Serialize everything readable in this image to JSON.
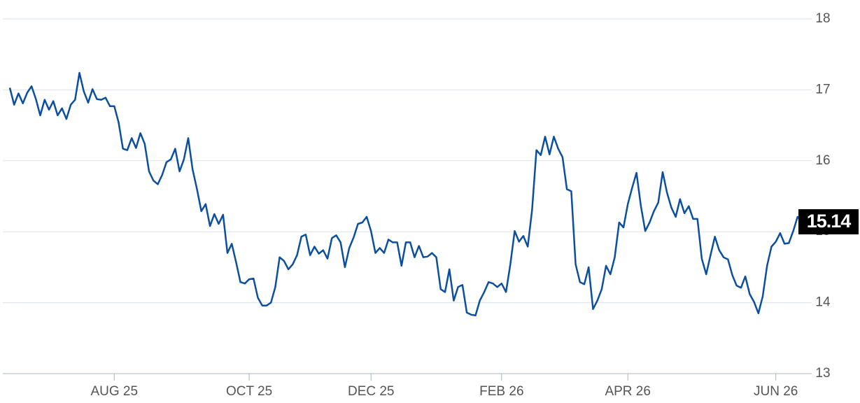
{
  "chart_data": {
    "type": "line",
    "categories": [
      null,
      null,
      null,
      null,
      null,
      null,
      null,
      null,
      null,
      null,
      null,
      null,
      null,
      null,
      null,
      null,
      null,
      null,
      null,
      null,
      null,
      null,
      null,
      null,
      "AUG 25",
      null,
      null,
      null,
      null,
      null,
      null,
      null,
      null,
      null,
      null,
      null,
      null,
      null,
      null,
      null,
      null,
      null,
      null,
      null,
      null,
      null,
      null,
      null,
      null,
      null,
      null,
      null,
      null,
      null,
      null,
      "OCT 25",
      null,
      null,
      null,
      null,
      null,
      null,
      null,
      null,
      null,
      null,
      null,
      null,
      null,
      null,
      null,
      null,
      null,
      null,
      null,
      null,
      null,
      null,
      null,
      null,
      null,
      null,
      null,
      "DEC 25",
      null,
      null,
      null,
      null,
      null,
      null,
      null,
      null,
      null,
      null,
      null,
      null,
      null,
      null,
      null,
      null,
      null,
      null,
      null,
      null,
      null,
      null,
      null,
      null,
      null,
      null,
      null,
      null,
      null,
      "FEB 26",
      null,
      null,
      null,
      null,
      null,
      null,
      null,
      null,
      null,
      null,
      null,
      null,
      null,
      null,
      null,
      null,
      null,
      null,
      null,
      null,
      null,
      null,
      null,
      null,
      null,
      null,
      null,
      null,
      "APR 26",
      null,
      null,
      null,
      null,
      null,
      null,
      null,
      null,
      null,
      null,
      null,
      null,
      null,
      null,
      null,
      null,
      null,
      null,
      null,
      null,
      null,
      null,
      null,
      null,
      null,
      null,
      null,
      null,
      null,
      null,
      null,
      null,
      null,
      "JUN 26",
      null,
      null,
      null,
      null,
      null,
      null
    ],
    "series": [
      {
        "color": "#0b4f9e",
        "values": [
          17.03,
          16.79,
          16.95,
          16.81,
          16.96,
          17.05,
          16.87,
          16.64,
          16.86,
          16.72,
          16.84,
          16.64,
          16.74,
          16.59,
          16.79,
          16.86,
          17.24,
          16.98,
          16.82,
          17.01,
          16.87,
          16.86,
          16.89,
          16.77,
          16.77,
          16.54,
          16.17,
          16.15,
          16.32,
          16.18,
          16.39,
          16.24,
          15.85,
          15.72,
          15.67,
          15.8,
          15.98,
          16.02,
          16.17,
          15.85,
          16.02,
          16.32,
          15.88,
          15.6,
          15.29,
          15.39,
          15.08,
          15.25,
          15.11,
          15.24,
          14.7,
          14.83,
          14.57,
          14.29,
          14.27,
          14.33,
          14.34,
          14.07,
          13.96,
          13.96,
          14.0,
          14.22,
          14.64,
          14.59,
          14.47,
          14.54,
          14.67,
          14.93,
          14.96,
          14.67,
          14.79,
          14.69,
          14.74,
          14.62,
          14.91,
          14.95,
          14.85,
          14.5,
          14.77,
          14.92,
          15.11,
          15.13,
          15.21,
          15.01,
          14.7,
          14.77,
          14.7,
          14.89,
          14.85,
          14.85,
          14.52,
          14.85,
          14.85,
          14.64,
          14.8,
          14.64,
          14.65,
          14.7,
          14.64,
          14.19,
          14.15,
          14.47,
          14.03,
          14.22,
          14.25,
          13.86,
          13.83,
          13.82,
          14.03,
          14.15,
          14.29,
          14.27,
          14.22,
          14.27,
          14.15,
          14.54,
          15.01,
          14.86,
          14.94,
          14.79,
          15.31,
          16.15,
          16.08,
          16.34,
          16.09,
          16.34,
          16.17,
          16.05,
          15.6,
          15.57,
          14.54,
          14.29,
          14.26,
          14.5,
          13.91,
          14.03,
          14.19,
          14.52,
          14.4,
          14.64,
          15.13,
          15.06,
          15.39,
          15.62,
          15.83,
          15.36,
          15.01,
          15.13,
          15.29,
          15.41,
          15.84,
          15.55,
          15.34,
          15.21,
          15.46,
          15.26,
          15.36,
          15.18,
          15.18,
          14.62,
          14.4,
          14.67,
          14.93,
          14.74,
          14.64,
          14.61,
          14.39,
          14.24,
          14.21,
          14.37,
          14.12,
          14.01,
          13.85,
          14.09,
          14.52,
          14.79,
          14.86,
          14.98,
          14.83,
          14.84,
          15.01,
          15.21,
          15.14
        ]
      }
    ],
    "ylim": [
      13,
      18
    ],
    "yticks": [
      13,
      14,
      15,
      16,
      17,
      18
    ],
    "grid": true
  }
}
